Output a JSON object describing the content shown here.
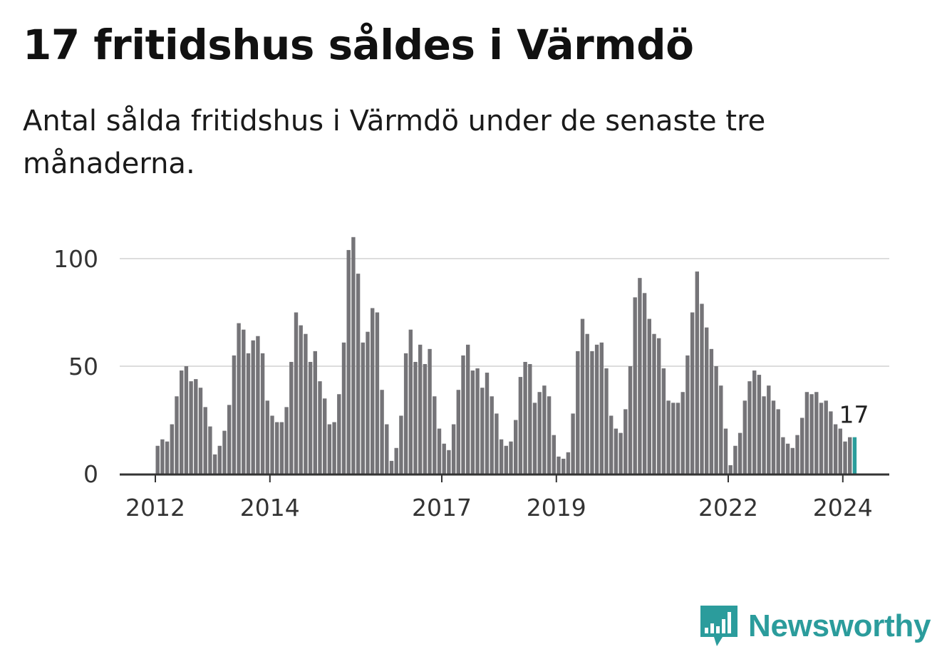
{
  "title": "17 fritidshus såldes i Värmdö",
  "subtitle": "Antal sålda fritidshus i Värmdö under de senaste tre månaderna.",
  "brand": {
    "name": "Newsworthy",
    "icon": "newsworthy-bar-chart-icon"
  },
  "colors": {
    "bar": "#757478",
    "highlight": "#2a9d9b",
    "grid": "#dddddd",
    "axis": "#333333",
    "brand": "#2b9c9c"
  },
  "chart_data": {
    "type": "bar",
    "start": "2012-01",
    "x_ticks": [
      "2012",
      "2014",
      "2017",
      "2019",
      "2022",
      "2024"
    ],
    "y_ticks": [
      0,
      50,
      100
    ],
    "ylim": [
      0,
      110
    ],
    "grid": true,
    "highlight_label": "17",
    "values": [
      13,
      16,
      15,
      23,
      36,
      48,
      50,
      43,
      44,
      40,
      31,
      22,
      9,
      13,
      20,
      32,
      55,
      70,
      67,
      56,
      62,
      64,
      56,
      34,
      27,
      24,
      24,
      31,
      52,
      75,
      69,
      65,
      52,
      57,
      43,
      35,
      23,
      24,
      37,
      61,
      104,
      110,
      93,
      61,
      66,
      77,
      75,
      39,
      23,
      6,
      12,
      27,
      56,
      67,
      52,
      60,
      51,
      58,
      36,
      21,
      14,
      11,
      23,
      39,
      55,
      60,
      48,
      49,
      40,
      47,
      36,
      28,
      16,
      13,
      15,
      25,
      45,
      52,
      51,
      33,
      38,
      41,
      36,
      18,
      8,
      7,
      10,
      28,
      57,
      72,
      65,
      57,
      60,
      61,
      49,
      27,
      21,
      19,
      30,
      50,
      82,
      91,
      84,
      72,
      65,
      63,
      49,
      34,
      33,
      33,
      38,
      55,
      75,
      94,
      79,
      68,
      58,
      50,
      41,
      21,
      4,
      13,
      19,
      34,
      43,
      48,
      46,
      36,
      41,
      34,
      30,
      17,
      14,
      12,
      18,
      26,
      38,
      37,
      38,
      33,
      34,
      29,
      23,
      21,
      15,
      17,
      17
    ]
  }
}
